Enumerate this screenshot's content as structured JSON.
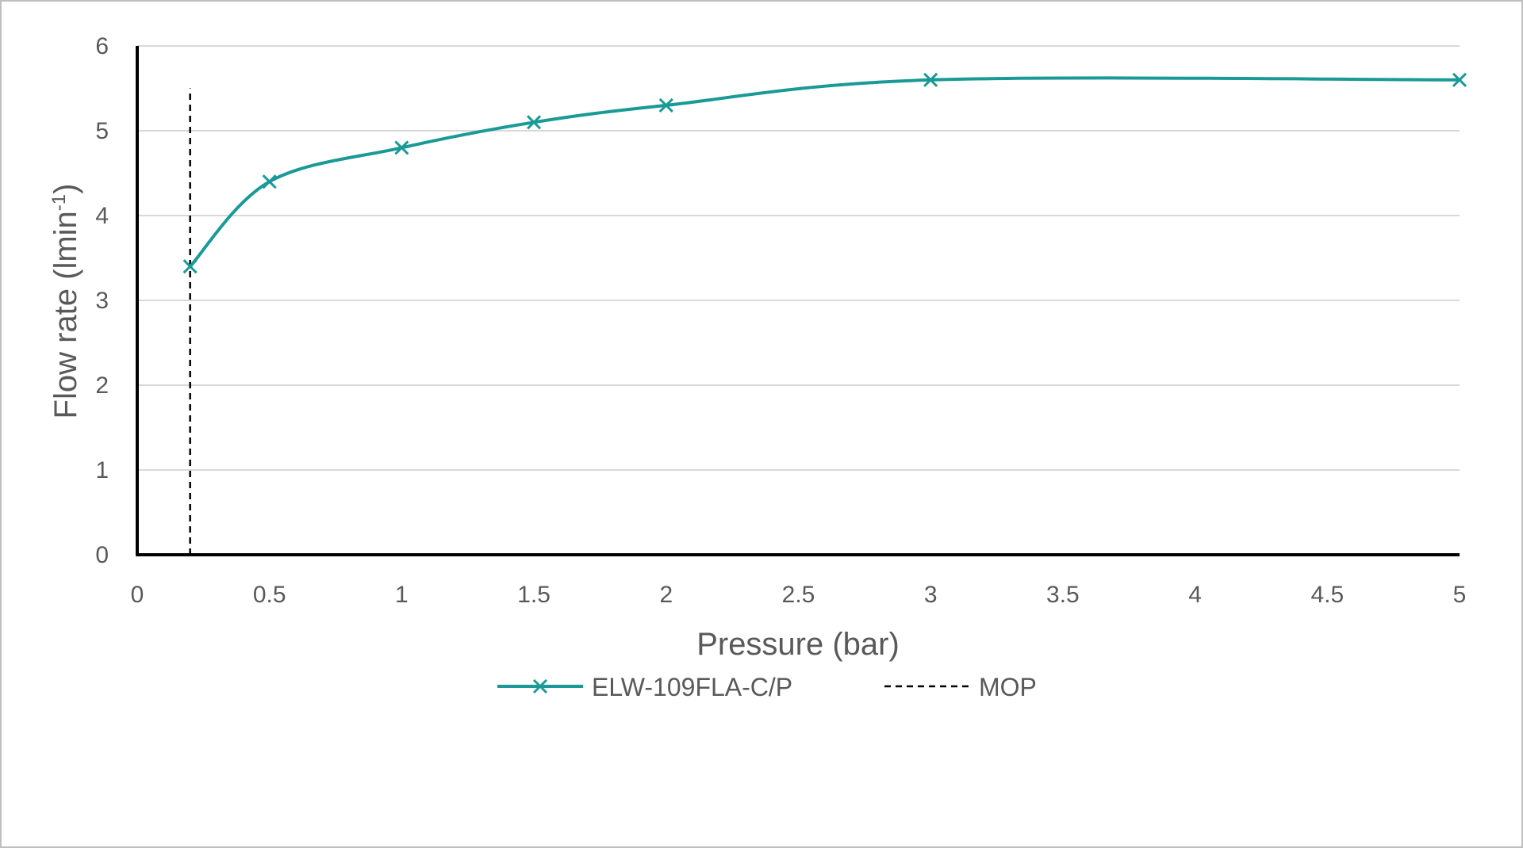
{
  "chart_data": {
    "type": "line",
    "xlabel": "Pressure (bar)",
    "ylabel": "Flow rate (lmin-1)",
    "ylabel_base": "Flow rate (lmin",
    "ylabel_sup": "-1",
    "ylabel_close": ")",
    "xlim": [
      0,
      5
    ],
    "ylim": [
      0,
      6
    ],
    "x_ticks": [
      "0",
      "0.5",
      "1",
      "1.5",
      "2",
      "2.5",
      "3",
      "3.5",
      "4",
      "4.5",
      "5"
    ],
    "y_ticks": [
      "0",
      "1",
      "2",
      "3",
      "4",
      "5",
      "6"
    ],
    "grid": "horizontal",
    "legend_placement": "bottom",
    "series": [
      {
        "name": "ELW-109FLA-C/P",
        "color": "#1a9a96",
        "marker": "x",
        "smooth": true,
        "x": [
          0.2,
          0.5,
          1,
          1.5,
          2,
          3,
          5
        ],
        "y": [
          3.4,
          4.4,
          4.8,
          5.1,
          5.3,
          5.6,
          5.6
        ]
      },
      {
        "name": "MOP",
        "color": "#000000",
        "style": "dashed",
        "x": [
          0.2,
          0.2
        ],
        "y": [
          0,
          5.5
        ]
      }
    ]
  }
}
